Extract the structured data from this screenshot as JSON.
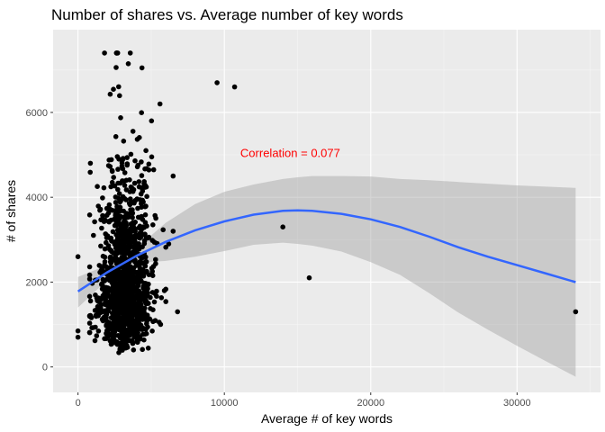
{
  "colors": {
    "panel": "#EBEBEB",
    "grid_major": "#FFFFFF",
    "grid_minor": "#F5F5F5",
    "points": "#000000",
    "smooth_line": "#3366FF",
    "ribbon": "#999999",
    "annotation": "#FF0000",
    "tick_text": "#4D4D4D"
  },
  "chart_data": {
    "type": "scatter",
    "title": "Number of shares vs. Average number of key words",
    "xlabel": "Average # of key words",
    "ylabel": "# of shares",
    "xlim": [
      -1700,
      35700
    ],
    "ylim": [
      -600,
      7950
    ],
    "x_ticks": [
      0,
      10000,
      20000,
      30000
    ],
    "x_tick_labels": [
      "0",
      "10000",
      "20000",
      "30000"
    ],
    "y_ticks": [
      0,
      2000,
      4000,
      6000
    ],
    "y_tick_labels": [
      "0",
      "2000",
      "4000",
      "6000"
    ],
    "grid": true,
    "legend": "none",
    "annotation": {
      "text": "Correlation = 0.077",
      "x": 14500,
      "y": 4950
    },
    "outlier_points": [
      {
        "x": 0,
        "y": 2600
      },
      {
        "x": 0,
        "y": 850
      },
      {
        "x": 0,
        "y": 700
      },
      {
        "x": 9500,
        "y": 6700
      },
      {
        "x": 10700,
        "y": 6600
      },
      {
        "x": 14000,
        "y": 3300
      },
      {
        "x": 15800,
        "y": 2100
      },
      {
        "x": 34000,
        "y": 1300
      },
      {
        "x": 6500,
        "y": 4500
      },
      {
        "x": 6500,
        "y": 3200
      },
      {
        "x": 6800,
        "y": 1300
      },
      {
        "x": 6200,
        "y": 2900
      },
      {
        "x": 5600,
        "y": 6200
      },
      {
        "x": 5900,
        "y": 1800
      }
    ],
    "main_cluster": {
      "x_center": 3200,
      "x_spread": 900,
      "x_range": [
        800,
        6000
      ],
      "y_range": [
        0,
        7400
      ],
      "y_median": 1900,
      "n_points": 1300
    },
    "smooth": {
      "method": "loess",
      "x": [
        0,
        2000,
        4000,
        6000,
        8000,
        10000,
        12000,
        14000,
        15000,
        16000,
        18000,
        20000,
        22000,
        24000,
        26000,
        28000,
        30000,
        32000,
        34000
      ],
      "y": [
        1780,
        2230,
        2620,
        2950,
        3220,
        3430,
        3590,
        3680,
        3690,
        3680,
        3610,
        3480,
        3300,
        3070,
        2820,
        2600,
        2400,
        2200,
        2000
      ],
      "ci_upper": [
        2120,
        2400,
        2800,
        3400,
        3840,
        4130,
        4300,
        4430,
        4470,
        4500,
        4500,
        4490,
        4430,
        4400,
        4360,
        4320,
        4280,
        4250,
        4220
      ],
      "ci_lower": [
        1400,
        2050,
        2450,
        2500,
        2600,
        2730,
        2880,
        2930,
        2900,
        2860,
        2720,
        2470,
        2170,
        1740,
        1280,
        880,
        500,
        130,
        -230
      ]
    }
  }
}
